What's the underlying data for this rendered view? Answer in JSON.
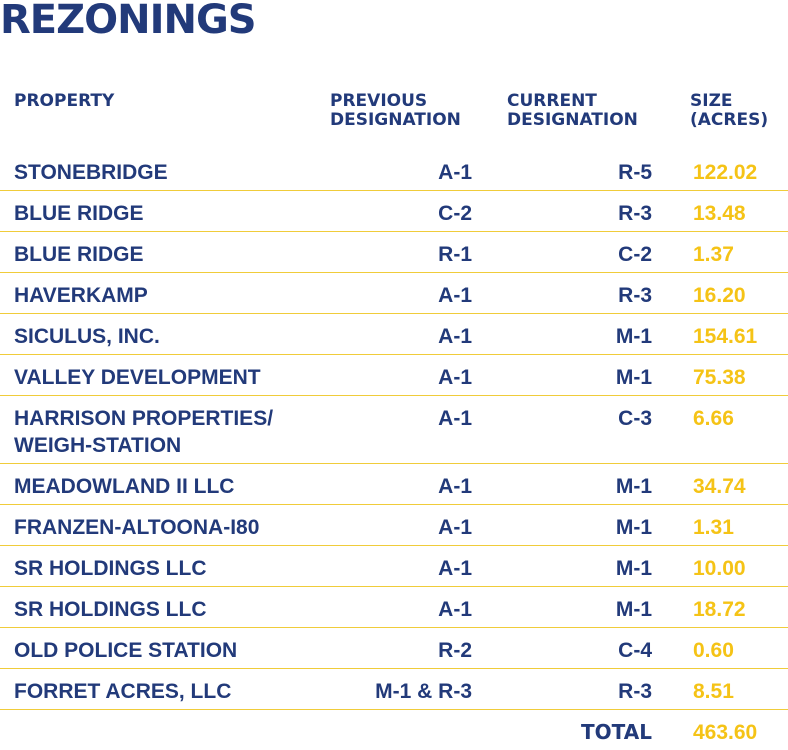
{
  "title": "REZONINGS",
  "headers": {
    "property": "PROPERTY",
    "previous": "PREVIOUS\nDESIGNATION",
    "current": "CURRENT\nDESIGNATION",
    "size": "SIZE\n(ACRES)"
  },
  "rows": [
    {
      "property": "STONEBRIDGE",
      "previous": "A-1",
      "current": "R-5",
      "size": "122.02"
    },
    {
      "property": "BLUE RIDGE",
      "previous": "C-2",
      "current": "R-3",
      "size": "13.48"
    },
    {
      "property": "BLUE RIDGE",
      "previous": "R-1",
      "current": "C-2",
      "size": "1.37"
    },
    {
      "property": "HAVERKAMP",
      "previous": "A-1",
      "current": "R-3",
      "size": "16.20"
    },
    {
      "property": "SICULUS, INC.",
      "previous": "A-1",
      "current": "M-1",
      "size": "154.61"
    },
    {
      "property": "VALLEY DEVELOPMENT",
      "previous": "A-1",
      "current": "M-1",
      "size": "75.38"
    },
    {
      "property": "HARRISON PROPERTIES/\nWEIGH-STATION",
      "previous": "A-1",
      "current": "C-3",
      "size": "6.66"
    },
    {
      "property": "MEADOWLAND II LLC",
      "previous": "A-1",
      "current": "M-1",
      "size": "34.74"
    },
    {
      "property": "FRANZEN-ALTOONA-I80",
      "previous": "A-1",
      "current": "M-1",
      "size": "1.31"
    },
    {
      "property": "SR HOLDINGS LLC",
      "previous": "A-1",
      "current": "M-1",
      "size": "10.00"
    },
    {
      "property": "SR HOLDINGS LLC",
      "previous": "A-1",
      "current": "M-1",
      "size": "18.72"
    },
    {
      "property": "OLD POLICE STATION",
      "previous": "R-2",
      "current": "C-4",
      "size": "0.60"
    },
    {
      "property": "FORRET ACRES, LLC",
      "previous": "M-1 & R-3",
      "current": "R-3",
      "size": "8.51"
    }
  ],
  "total": {
    "label": "TOTAL",
    "value": "463.60"
  },
  "colors": {
    "navy": "#223a7a",
    "gold": "#f5c316",
    "rule": "#f0cc3a"
  }
}
